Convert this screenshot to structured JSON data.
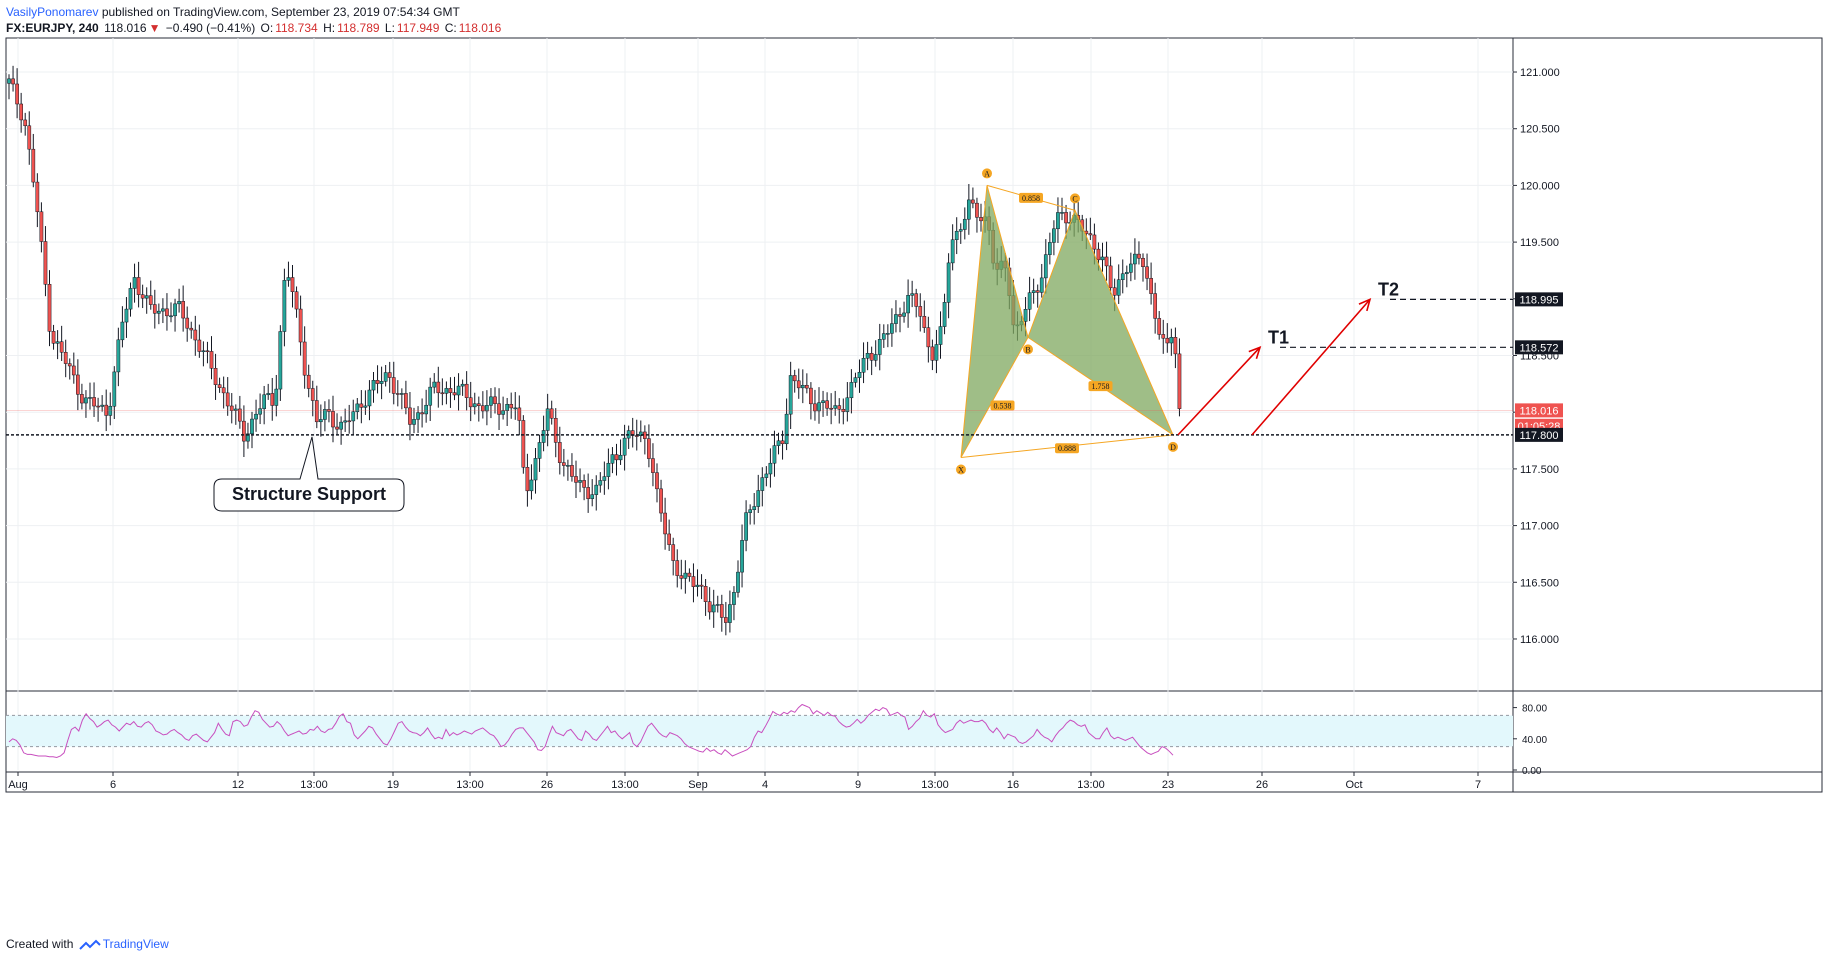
{
  "header": {
    "author": "VasilyPonomarev",
    "published_text": "published on TradingView.com, September 23, 2019 07:54:34 GMT",
    "symbol": "FX:EURJPY, 240",
    "last": "118.016",
    "change_arrow": "▼",
    "change": "−0.490 (−0.41%)",
    "o_label": "O:",
    "o_value": "118.734",
    "h_label": "H:",
    "h_value": "118.789",
    "l_label": "L:",
    "l_value": "117.949",
    "c_label": "C:",
    "c_value": "118.016"
  },
  "footer": {
    "created_with": "Created with",
    "brand": "TradingView"
  },
  "chart_data": {
    "type": "candlestick",
    "symbol": "FX:EURJPY",
    "timeframe": "240",
    "ylim": [
      115.55,
      121.3
    ],
    "price_ticks": [
      "121.000",
      "120.500",
      "120.000",
      "119.500",
      "119.000",
      "118.500",
      "118.000",
      "117.500",
      "117.000",
      "116.500",
      "116.000"
    ],
    "x_ticks": [
      "Aug",
      "6",
      "12",
      "13:00",
      "19",
      "13:00",
      "26",
      "13:00",
      "Sep",
      "4",
      "9",
      "13:00",
      "16",
      "13:00",
      "23",
      "26",
      "Oct",
      "7"
    ],
    "price_badges": [
      {
        "text": "118.995",
        "value": 118.995,
        "bg": "#131722",
        "fg": "#ffffff"
      },
      {
        "text": "118.572",
        "value": 118.572,
        "bg": "#131722",
        "fg": "#ffffff"
      },
      {
        "text": "118.016",
        "value": 118.016,
        "bg": "#ef5350",
        "fg": "#ffffff"
      },
      {
        "text": "01:05:28",
        "value": 117.88,
        "bg": "#ef5350",
        "fg": "#ffffff"
      },
      {
        "text": "117.800",
        "value": 117.8,
        "bg": "#131722",
        "fg": "#ffffff"
      }
    ],
    "support_level": 117.8,
    "target_levels": [
      {
        "name": "T1",
        "value": 118.572
      },
      {
        "name": "T2",
        "value": 118.995
      }
    ],
    "annotation_label": "Structure Support",
    "pattern": {
      "points": [
        {
          "label": "X",
          "value": 117.6
        },
        {
          "label": "A",
          "value": 120.0
        },
        {
          "label": "B",
          "value": 118.66
        },
        {
          "label": "C",
          "value": 119.78
        },
        {
          "label": "D",
          "value": 117.8
        }
      ],
      "ratios": [
        "0.858",
        "0.538",
        "1.758",
        "0.888"
      ]
    },
    "colors": {
      "up": "#26a69a",
      "down": "#ef5350",
      "pattern_fill": "#7fa85f",
      "pattern_line": "#f5a623",
      "rsi": "#c84fbf",
      "rsi_band": "#e3f8fc"
    },
    "rsi": {
      "ticks": [
        "80.00",
        "40.00",
        "0.00"
      ],
      "band": [
        70,
        30
      ],
      "values": [
        36,
        40,
        38,
        32,
        22,
        20,
        20,
        19,
        18,
        18,
        18,
        17,
        17,
        16,
        18,
        22,
        38,
        52,
        55,
        50,
        64,
        72,
        66,
        62,
        55,
        58,
        62,
        64,
        58,
        55,
        50,
        55,
        60,
        58,
        62,
        56,
        55,
        60,
        62,
        58,
        50,
        48,
        45,
        46,
        50,
        52,
        48,
        45,
        40,
        38,
        44,
        46,
        42,
        38,
        36,
        42,
        48,
        60,
        52,
        46,
        44,
        62,
        64,
        62,
        56,
        58,
        68,
        76,
        74,
        65,
        60,
        55,
        56,
        62,
        58,
        50,
        44,
        46,
        48,
        50,
        46,
        47,
        52,
        51,
        56,
        50,
        48,
        52,
        53,
        60,
        69,
        72,
        62,
        60,
        45,
        40,
        45,
        50,
        56,
        54,
        46,
        40,
        34,
        32,
        40,
        50,
        60,
        62,
        55,
        50,
        48,
        47,
        44,
        48,
        54,
        46,
        40,
        42,
        40,
        52,
        44,
        48,
        45,
        47,
        50,
        48,
        46,
        50,
        52,
        54,
        50,
        46,
        44,
        38,
        30,
        32,
        38,
        46,
        52,
        54,
        54,
        48,
        42,
        36,
        26,
        25,
        30,
        44,
        56,
        48,
        46,
        44,
        50,
        52,
        46,
        40,
        38,
        50,
        46,
        40,
        38,
        44,
        50,
        56,
        48,
        50,
        44,
        40,
        44,
        48,
        34,
        30,
        36,
        46,
        56,
        60,
        54,
        48,
        44,
        42,
        48,
        46,
        44,
        40,
        34,
        30,
        28,
        26,
        24,
        23,
        28,
        24,
        26,
        22,
        20,
        26,
        22,
        18,
        20,
        22,
        24,
        26,
        30,
        42,
        50,
        48,
        56,
        65,
        75,
        72,
        70,
        74,
        72,
        76,
        74,
        80,
        84,
        82,
        80,
        72,
        76,
        73,
        70,
        74,
        70,
        69,
        62,
        58,
        55,
        56,
        60,
        65,
        60,
        64,
        70,
        74,
        78,
        76,
        80,
        78,
        70,
        72,
        74,
        70,
        68,
        52,
        56,
        62,
        66,
        76,
        70,
        68,
        72,
        58,
        52,
        48,
        50,
        52,
        60,
        64,
        60,
        62,
        64,
        62,
        62,
        64,
        60,
        52,
        48,
        54,
        48,
        40,
        46,
        44,
        42,
        36,
        34,
        36,
        40,
        44,
        52,
        46,
        42,
        40,
        36,
        44,
        50,
        54,
        60,
        64,
        62,
        58,
        56,
        58,
        48,
        44,
        40,
        40,
        48,
        54,
        44,
        40,
        42,
        40,
        38,
        40,
        42,
        36,
        30,
        26,
        22,
        20,
        22,
        24,
        30,
        28,
        24,
        19
      ]
    }
  }
}
